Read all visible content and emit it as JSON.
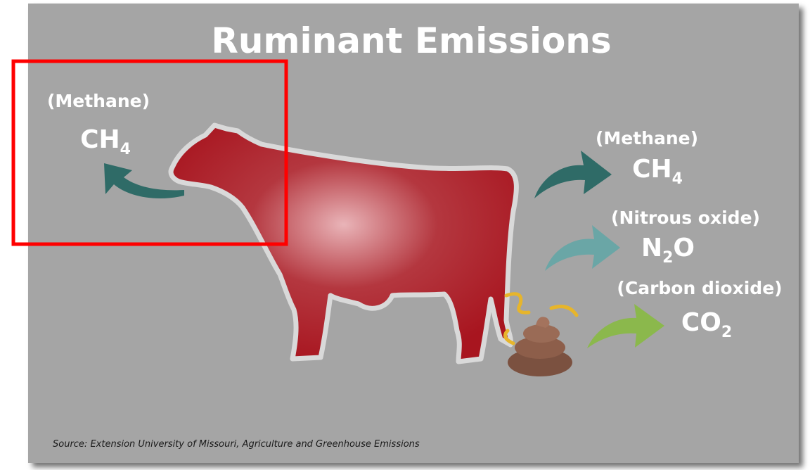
{
  "title": "Ruminant Emissions",
  "mouth_emission": {
    "name": "(Methane)",
    "formula": [
      "CH",
      "4"
    ]
  },
  "rear_emissions": [
    {
      "name": "(Methane)",
      "formula": [
        "CH",
        "4"
      ]
    },
    {
      "name": "(Nitrous oxide)",
      "formula": [
        "N",
        "2",
        "O"
      ]
    },
    {
      "name": "(Carbon dioxide)",
      "formula": [
        "CO",
        "2"
      ]
    }
  ],
  "source": "Source: Extension University of Missouri, Agriculture and Greenhouse Emissions"
}
